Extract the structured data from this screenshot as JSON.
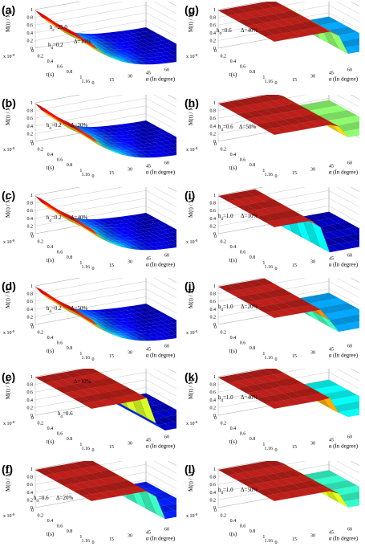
{
  "chart_data": [
    {
      "type": "surface",
      "panel": "(a)",
      "title": "",
      "xlabel": "t(s)",
      "ylabel": "α (In degree)",
      "zlabel": "M(t) / M",
      "z_subscript": "s",
      "x_ticks": [
        "0",
        "0.2",
        "0.4",
        "0.6",
        "0.8",
        "1",
        "1.16"
      ],
      "x_multiplier_base": "x 10",
      "x_multiplier_exp": "-8",
      "y_ticks": [
        "0",
        "15",
        "30",
        "45",
        "60",
        "75",
        "90"
      ],
      "z_ticks": [
        "0",
        "0.2",
        "0.4",
        "0.6",
        "0.8",
        "1"
      ],
      "zlim": [
        0,
        1
      ],
      "annotations": [
        {
          "prefix": "h",
          "sub": "d",
          "text": "=0.2"
        },
        {
          "prefix": "Δ=10%",
          "sub": "",
          "text": ""
        },
        {
          "prefix": "h",
          "sub": "c",
          "text": "=25.0"
        }
      ],
      "colormap": "jet",
      "decay": "steep",
      "surface_style": "smooth"
    },
    {
      "type": "surface",
      "panel": "(b)",
      "title": "",
      "xlabel": "t(s)",
      "ylabel": "α (In degree)",
      "zlabel": "M(t) / M",
      "z_subscript": "s",
      "x_ticks": [
        "0",
        "0.2",
        "0.4",
        "0.6",
        "0.8",
        "1",
        "1.16"
      ],
      "x_multiplier_base": "x 10",
      "x_multiplier_exp": "-8",
      "y_ticks": [
        "0",
        "15",
        "30",
        "45",
        "60",
        "75",
        "90"
      ],
      "z_ticks": [
        "0",
        "0.2",
        "0.4",
        "0.6",
        "0.8",
        "1"
      ],
      "zlim": [
        0,
        1
      ],
      "annotations": [
        {
          "prefix": "h",
          "sub": "d",
          "text": "=0.2"
        },
        {
          "prefix": "Δ=20%",
          "sub": "",
          "text": ""
        }
      ],
      "colormap": "jet",
      "decay": "steep",
      "surface_style": "smooth"
    },
    {
      "type": "surface",
      "panel": "(c)",
      "title": "",
      "xlabel": "t(s)",
      "ylabel": "α (In degree)",
      "zlabel": "M(t) / M",
      "z_subscript": "s",
      "x_ticks": [
        "0",
        "0.2",
        "0.4",
        "0.6",
        "0.8",
        "1",
        "1.16"
      ],
      "x_multiplier_base": "x 10",
      "x_multiplier_exp": "-8",
      "y_ticks": [
        "0",
        "15",
        "30",
        "45",
        "60",
        "75",
        "90"
      ],
      "z_ticks": [
        "0",
        "0.2",
        "0.4",
        "0.6",
        "0.8",
        "1"
      ],
      "zlim": [
        0,
        1
      ],
      "annotations": [
        {
          "prefix": "h",
          "sub": "d",
          "text": "=0.2"
        },
        {
          "prefix": "Δ=40%",
          "sub": "",
          "text": ""
        }
      ],
      "colormap": "jet",
      "decay": "steep",
      "surface_style": "smooth"
    },
    {
      "type": "surface",
      "panel": "(d)",
      "title": "",
      "xlabel": "t(s)",
      "ylabel": "α (In degree)",
      "zlabel": "M(t) / M",
      "z_subscript": "s",
      "x_ticks": [
        "0",
        "0.2",
        "0.4",
        "0.6",
        "0.8",
        "1",
        "1.16"
      ],
      "x_multiplier_base": "x 10",
      "x_multiplier_exp": "-8",
      "y_ticks": [
        "0",
        "15",
        "30",
        "45",
        "60",
        "75",
        "90"
      ],
      "z_ticks": [
        "0",
        "0.2",
        "0.4",
        "0.6",
        "0.8",
        "1"
      ],
      "zlim": [
        0,
        1
      ],
      "annotations": [
        {
          "prefix": "h",
          "sub": "d",
          "text": "=0.2"
        },
        {
          "prefix": "Δ=50%",
          "sub": "",
          "text": ""
        }
      ],
      "colormap": "jet",
      "decay": "steep",
      "surface_style": "smooth"
    },
    {
      "type": "surface",
      "panel": "(e)",
      "title": "",
      "xlabel": "t(s)",
      "ylabel": "α (In degree)",
      "zlabel": "M(t) / M",
      "z_subscript": "s",
      "x_ticks": [
        "0",
        "0.2",
        "0.4",
        "0.6",
        "0.8",
        "1",
        "1.16"
      ],
      "x_multiplier_base": "x 10",
      "x_multiplier_exp": "-8",
      "y_ticks": [
        "0",
        "15",
        "30",
        "45",
        "60",
        "75",
        "90"
      ],
      "z_ticks": [
        "0",
        "0.2",
        "0.4",
        "0.6",
        "0.8",
        "1"
      ],
      "zlim": [
        0,
        1
      ],
      "annotations": [
        {
          "prefix": "Δ=10%",
          "sub": "",
          "text": ""
        },
        {
          "prefix": "h",
          "sub": "d",
          "text": "=0.6"
        }
      ],
      "colormap": "jet",
      "switch_alpha": 55,
      "low_level": 0.05,
      "surface_style": "step"
    },
    {
      "type": "surface",
      "panel": "(f)",
      "title": "",
      "xlabel": "t(s)",
      "ylabel": "α (In degree)",
      "zlabel": "M(t) / M",
      "z_subscript": "s",
      "x_ticks": [
        "0",
        "0.2",
        "0.4",
        "0.6",
        "0.8",
        "1",
        "1.16"
      ],
      "x_multiplier_base": "x 10",
      "x_multiplier_exp": "-8",
      "y_ticks": [
        "0",
        "15",
        "30",
        "45",
        "60",
        "75",
        "90"
      ],
      "z_ticks": [
        "0",
        "0.2",
        "0.4",
        "0.6",
        "0.8",
        "1"
      ],
      "zlim": [
        0,
        1
      ],
      "annotations": [
        {
          "prefix": "h",
          "sub": "d",
          "text": "=0.6"
        },
        {
          "prefix": "Δ=20%",
          "sub": "",
          "text": ""
        }
      ],
      "colormap": "jet",
      "switch_alpha": 60,
      "low_level": 0.15,
      "surface_style": "step"
    },
    {
      "type": "surface",
      "panel": "(g)",
      "title": "",
      "xlabel": "t(s)",
      "ylabel": "α (In degree)",
      "zlabel": "M(t) / M",
      "z_subscript": "s",
      "x_ticks": [
        "0",
        "0.2",
        "0.4",
        "0.6",
        "0.8",
        "1",
        "1.16"
      ],
      "x_multiplier_base": "x 10",
      "x_multiplier_exp": "-8",
      "y_ticks": [
        "0",
        "15",
        "30",
        "45",
        "60",
        "75",
        "90"
      ],
      "z_ticks": [
        "0",
        "0.2",
        "0.4",
        "0.6",
        "0.8",
        "1"
      ],
      "zlim": [
        0,
        1
      ],
      "annotations": [
        {
          "prefix": "h",
          "sub": "d",
          "text": "=0.6"
        },
        {
          "prefix": "Δ=40%",
          "sub": "",
          "text": ""
        }
      ],
      "colormap": "jet",
      "switch_alpha": 60,
      "low_level": 0.3,
      "surface_style": "step"
    },
    {
      "type": "surface",
      "panel": "(h)",
      "title": "",
      "xlabel": "t(s)",
      "ylabel": "α (In degree)",
      "zlabel": "M(t) / M",
      "z_subscript": "s",
      "x_ticks": [
        "0",
        "0.2",
        "0.4",
        "0.6",
        "0.8",
        "1",
        "1.16"
      ],
      "x_multiplier_base": "x 10",
      "x_multiplier_exp": "-8",
      "y_ticks": [
        "0",
        "15",
        "30",
        "45",
        "60",
        "75",
        "90"
      ],
      "z_ticks": [
        "0",
        "0.2",
        "0.4",
        "0.6",
        "0.8",
        "1"
      ],
      "zlim": [
        0,
        1
      ],
      "annotations": [
        {
          "prefix": "h",
          "sub": "d",
          "text": "=0.6"
        },
        {
          "prefix": "Δ=50%",
          "sub": "",
          "text": ""
        }
      ],
      "colormap": "jet",
      "switch_alpha": 60,
      "low_level": 0.55,
      "surface_style": "step"
    },
    {
      "type": "surface",
      "panel": "(i)",
      "title": "",
      "xlabel": "t(s)",
      "ylabel": "α (In degree)",
      "zlabel": "M(t) / M",
      "z_subscript": "s",
      "x_ticks": [
        "0",
        "0.2",
        "0.4",
        "0.6",
        "0.8",
        "1",
        "1.16"
      ],
      "x_multiplier_base": "x 10",
      "x_multiplier_exp": "-8",
      "y_ticks": [
        "0",
        "15",
        "30",
        "45",
        "60",
        "75",
        "90"
      ],
      "z_ticks": [
        "0",
        "0.2",
        "0.4",
        "0.6",
        "0.8",
        "1"
      ],
      "zlim": [
        0,
        1
      ],
      "annotations": [
        {
          "prefix": "h",
          "sub": "d",
          "text": "=1.0"
        },
        {
          "prefix": "Δ=10%",
          "sub": "",
          "text": ""
        }
      ],
      "colormap": "jet",
      "switch_alpha": 45,
      "low_level": 0.05,
      "surface_style": "step"
    },
    {
      "type": "surface",
      "panel": "(j)",
      "title": "",
      "xlabel": "t(s)",
      "ylabel": "α (In degree)",
      "zlabel": "M(t) / M",
      "z_subscript": "s",
      "x_ticks": [
        "0",
        "0.2",
        "0.4",
        "0.6",
        "0.8",
        "1",
        "1.16"
      ],
      "x_multiplier_base": "x 10",
      "x_multiplier_exp": "-8",
      "y_ticks": [
        "0",
        "15",
        "30",
        "45",
        "60",
        "75",
        "90"
      ],
      "z_ticks": [
        "0",
        "0.2",
        "0.4",
        "0.6",
        "0.8",
        "1"
      ],
      "zlim": [
        0,
        1
      ],
      "annotations": [
        {
          "prefix": "h",
          "sub": "d",
          "text": "=1.0"
        },
        {
          "prefix": "Δ=20%",
          "sub": "",
          "text": ""
        }
      ],
      "colormap": "jet",
      "switch_alpha": 50,
      "low_level": 0.3,
      "surface_style": "step"
    },
    {
      "type": "surface",
      "panel": "(k)",
      "title": "",
      "xlabel": "t(s)",
      "ylabel": "α (In degree)",
      "zlabel": "M(t) / M",
      "z_subscript": "s",
      "x_ticks": [
        "0",
        "0.2",
        "0.4",
        "0.6",
        "0.8",
        "1",
        "1.16"
      ],
      "x_multiplier_base": "x 10",
      "x_multiplier_exp": "-8",
      "y_ticks": [
        "0",
        "15",
        "30",
        "45",
        "60",
        "75",
        "90"
      ],
      "z_ticks": [
        "0",
        "0.2",
        "0.4",
        "0.6",
        "0.8",
        "1"
      ],
      "zlim": [
        0,
        1
      ],
      "annotations": [
        {
          "prefix": "h",
          "sub": "d",
          "text": "=1.0"
        },
        {
          "prefix": "Δ=40%",
          "sub": "",
          "text": ""
        }
      ],
      "colormap": "jet",
      "switch_alpha": 55,
      "low_level": 0.4,
      "surface_style": "step"
    },
    {
      "type": "surface",
      "panel": "(l)",
      "title": "",
      "xlabel": "t(s)",
      "ylabel": "α (In degree)",
      "zlabel": "M(t) / M",
      "z_subscript": "s",
      "x_ticks": [
        "0",
        "0.2",
        "0.4",
        "0.6",
        "0.8",
        "1",
        "1.16"
      ],
      "x_multiplier_base": "x 10",
      "x_multiplier_exp": "-8",
      "y_ticks": [
        "0",
        "15",
        "30",
        "45",
        "60",
        "75",
        "90"
      ],
      "z_ticks": [
        "0",
        "0.2",
        "0.4",
        "0.6",
        "0.8",
        "1"
      ],
      "zlim": [
        0,
        1
      ],
      "annotations": [
        {
          "prefix": "h",
          "sub": "d",
          "text": "=1.0"
        },
        {
          "prefix": "Δ=50%",
          "sub": "",
          "text": ""
        }
      ],
      "colormap": "jet",
      "switch_alpha": 60,
      "low_level": 0.45,
      "surface_style": "step"
    }
  ]
}
